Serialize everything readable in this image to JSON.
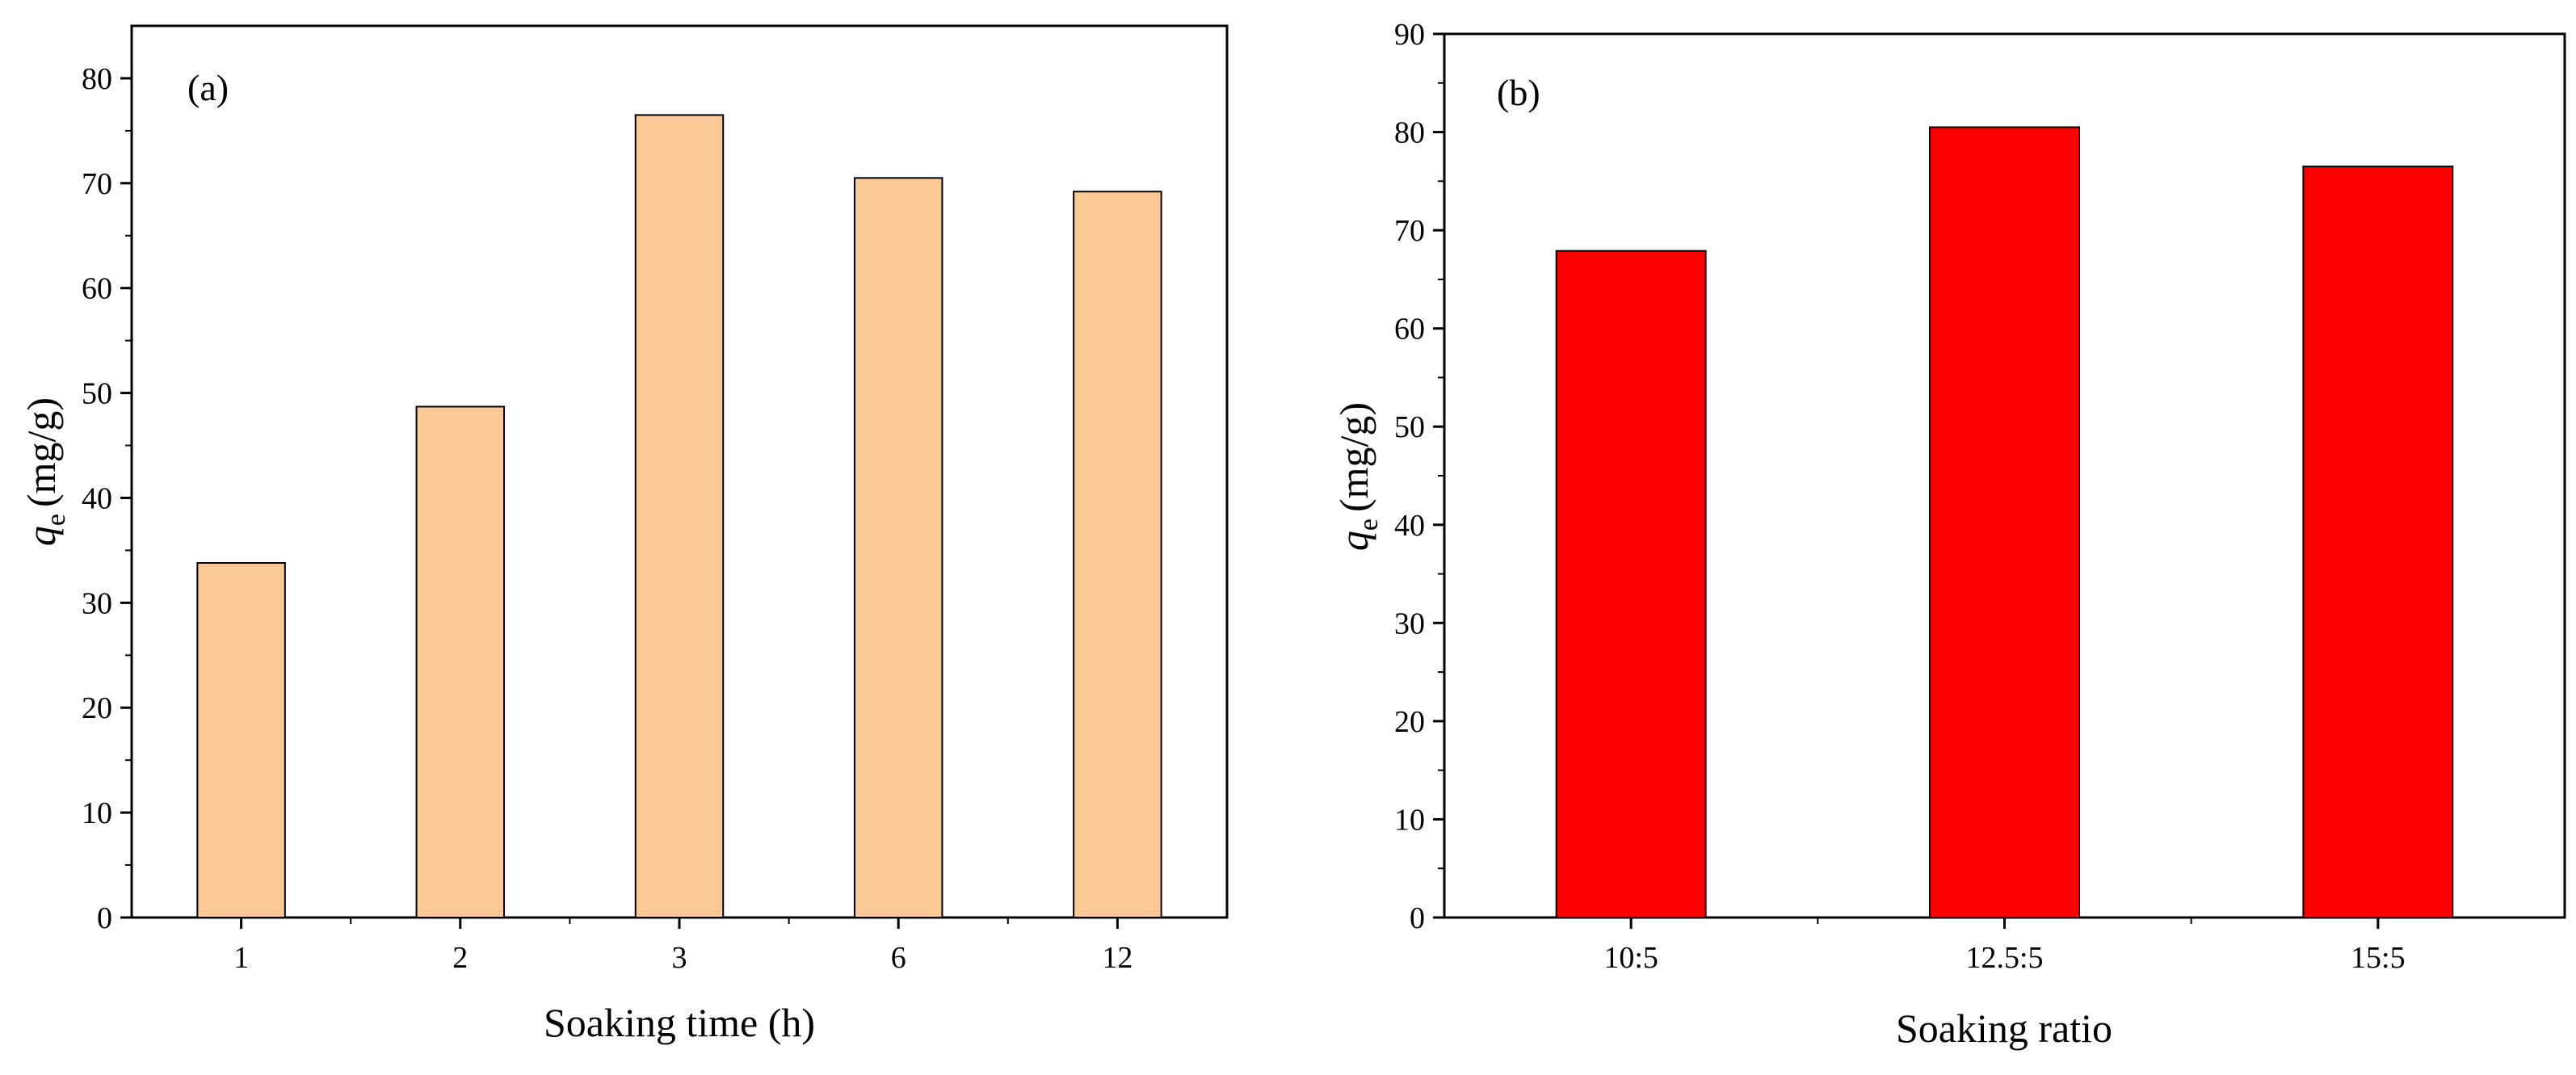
{
  "chart_data": [
    {
      "type": "bar",
      "panel_label": "(a)",
      "categories": [
        "1",
        "2",
        "3",
        "6",
        "12"
      ],
      "values": [
        33.8,
        48.7,
        76.5,
        70.5,
        69.2
      ],
      "xlabel": "Soaking time (h)",
      "ylabel": {
        "symbol": "q",
        "subscript": "e",
        "unit": "(mg/g)"
      },
      "ylim": [
        0,
        85
      ],
      "yticks": [
        "0",
        "10",
        "20",
        "30",
        "40",
        "50",
        "60",
        "70",
        "80"
      ],
      "bar_color": "#FCC896",
      "grid": false,
      "legend": false
    },
    {
      "type": "bar",
      "panel_label": "(b)",
      "categories": [
        "10:5",
        "12.5:5",
        "15:5"
      ],
      "values": [
        67.9,
        80.5,
        76.5
      ],
      "xlabel": "Soaking ratio",
      "ylabel": {
        "symbol": "q",
        "subscript": "e",
        "unit": "(mg/g)"
      },
      "ylim": [
        0,
        90
      ],
      "yticks": [
        "0",
        "10",
        "20",
        "30",
        "40",
        "50",
        "60",
        "70",
        "80",
        "90"
      ],
      "bar_color": "#FF0000",
      "grid": false,
      "legend": false
    }
  ]
}
